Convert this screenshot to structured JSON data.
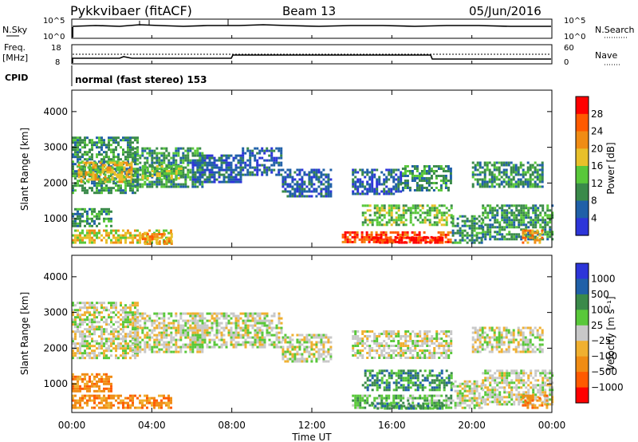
{
  "header": {
    "station": "Pykkvibaer (fitACF)",
    "beam": "Beam 13",
    "date": "05/Jun/2016"
  },
  "noise_panel": {
    "left_label": "N.Sky",
    "left_ticks": [
      "10^5",
      "10^0"
    ],
    "right_label": "N.Search",
    "right_ticks": [
      "10^5",
      "10^0"
    ]
  },
  "freq_panel": {
    "left_label_1": "Freq.",
    "left_label_2": "[MHz]",
    "left_ticks": [
      "18",
      "8"
    ],
    "right_label": "Nave",
    "right_ticks": [
      "60",
      "0"
    ]
  },
  "cpid": {
    "label": "CPID",
    "value": "normal (fast stereo) 153"
  },
  "colors": {
    "power": [
      "#2d35d9",
      "#2060a8",
      "#3a8a4a",
      "#59c83a",
      "#e8c02a",
      "#f08c14",
      "#ff5a00",
      "#ff0000"
    ],
    "velocity": [
      "#2d35d9",
      "#2060a8",
      "#3a8a4a",
      "#59c83a",
      "#c8c8c8",
      "#f0b030",
      "#f08c14",
      "#ff5a00",
      "#ff0000"
    ]
  },
  "chart_data": [
    {
      "type": "heatmap",
      "title": "Power",
      "ylabel": "Slant Range [km]",
      "yticks": [
        "1000",
        "2000",
        "3000",
        "4000"
      ],
      "ylim": [
        200,
        4600
      ],
      "xlim_hours": [
        0,
        24
      ],
      "colorbar_label": "Power [dB]",
      "colorbar_ticks": [
        "4",
        "8",
        "12",
        "16",
        "20",
        "24",
        "28"
      ],
      "regions": [
        {
          "t0": 0.0,
          "t1": 3.3,
          "r0": 1700,
          "r1": 3300,
          "level": 2
        },
        {
          "t0": 0.3,
          "t1": 3.0,
          "r0": 2000,
          "r1": 2600,
          "level": 4
        },
        {
          "t0": 3.0,
          "t1": 6.5,
          "r0": 1900,
          "r1": 3000,
          "level": 2
        },
        {
          "t0": 3.5,
          "t1": 5.5,
          "r0": 2100,
          "r1": 2500,
          "level": 3
        },
        {
          "t0": 6.0,
          "t1": 8.5,
          "r0": 2000,
          "r1": 2800,
          "level": 1
        },
        {
          "t0": 8.5,
          "t1": 10.5,
          "r0": 2200,
          "r1": 3000,
          "level": 1
        },
        {
          "t0": 10.5,
          "t1": 13.0,
          "r0": 1600,
          "r1": 2400,
          "level": 1
        },
        {
          "t0": 14.0,
          "t1": 16.5,
          "r0": 1700,
          "r1": 2400,
          "level": 1
        },
        {
          "t0": 16.5,
          "t1": 19.0,
          "r0": 1800,
          "r1": 2500,
          "level": 2
        },
        {
          "t0": 20.0,
          "t1": 23.5,
          "r0": 1900,
          "r1": 2600,
          "level": 2
        },
        {
          "t0": 0.0,
          "t1": 2.0,
          "r0": 800,
          "r1": 1300,
          "level": 2
        },
        {
          "t0": 0.0,
          "t1": 5.0,
          "r0": 300,
          "r1": 700,
          "level": 4
        },
        {
          "t0": 3.5,
          "t1": 5.0,
          "r0": 300,
          "r1": 600,
          "level": 5
        },
        {
          "t0": 13.5,
          "t1": 19.0,
          "r0": 350,
          "r1": 650,
          "level": 6
        },
        {
          "t0": 15.0,
          "t1": 18.5,
          "r0": 300,
          "r1": 500,
          "level": 7
        },
        {
          "t0": 14.5,
          "t1": 19.0,
          "r0": 800,
          "r1": 1400,
          "level": 3
        },
        {
          "t0": 19.0,
          "t1": 20.5,
          "r0": 300,
          "r1": 1100,
          "level": 2
        },
        {
          "t0": 20.5,
          "t1": 24.0,
          "r0": 400,
          "r1": 1400,
          "level": 2
        },
        {
          "t0": 22.5,
          "t1": 23.5,
          "r0": 300,
          "r1": 700,
          "level": 5
        }
      ]
    },
    {
      "type": "heatmap",
      "title": "Velocity",
      "ylabel": "Slant Range [km]",
      "yticks": [
        "1000",
        "2000",
        "3000",
        "4000"
      ],
      "ylim": [
        200,
        4600
      ],
      "xlim_hours": [
        0,
        24
      ],
      "xticks": [
        "00:00",
        "04:00",
        "08:00",
        "12:00",
        "16:00",
        "20:00",
        "00:00"
      ],
      "xlabel": "Time UT",
      "colorbar_label": "Velocity [m s⁻¹]",
      "colorbar_ticks": [
        "1000",
        "500",
        "100",
        "25",
        "−25",
        "−100",
        "−500",
        "−1000"
      ],
      "regions": [
        {
          "t0": 0.0,
          "t1": 3.3,
          "r0": 1700,
          "r1": 3300,
          "level": 4
        },
        {
          "t0": 3.0,
          "t1": 6.5,
          "r0": 1900,
          "r1": 3000,
          "level": 4
        },
        {
          "t0": 6.0,
          "t1": 10.5,
          "r0": 2000,
          "r1": 3000,
          "level": 4
        },
        {
          "t0": 10.5,
          "t1": 13.0,
          "r0": 1600,
          "r1": 2400,
          "level": 4
        },
        {
          "t0": 14.0,
          "t1": 19.0,
          "r0": 1700,
          "r1": 2500,
          "level": 4
        },
        {
          "t0": 20.0,
          "t1": 23.5,
          "r0": 1900,
          "r1": 2600,
          "level": 4
        },
        {
          "t0": 0.0,
          "t1": 2.0,
          "r0": 800,
          "r1": 1300,
          "level": 6
        },
        {
          "t0": 0.0,
          "t1": 5.0,
          "r0": 300,
          "r1": 700,
          "level": 6
        },
        {
          "t0": 14.0,
          "t1": 19.0,
          "r0": 350,
          "r1": 700,
          "level": 3
        },
        {
          "t0": 15.0,
          "t1": 18.5,
          "r0": 300,
          "r1": 480,
          "level": 2
        },
        {
          "t0": 14.5,
          "t1": 19.0,
          "r0": 800,
          "r1": 1400,
          "level": 2
        },
        {
          "t0": 19.0,
          "t1": 20.5,
          "r0": 300,
          "r1": 1100,
          "level": 4
        },
        {
          "t0": 20.5,
          "t1": 24.0,
          "r0": 400,
          "r1": 1400,
          "level": 4
        },
        {
          "t0": 22.5,
          "t1": 23.8,
          "r0": 300,
          "r1": 700,
          "level": 6
        }
      ]
    }
  ]
}
